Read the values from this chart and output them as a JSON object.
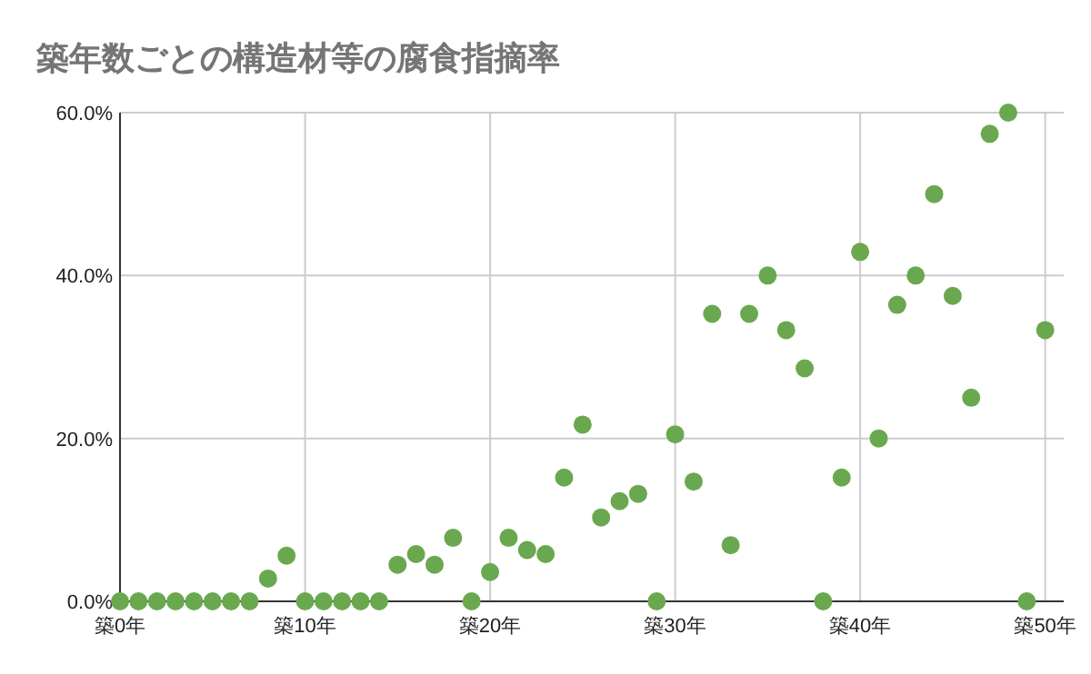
{
  "chart_data": {
    "type": "scatter",
    "title": "築年数ごとの構造材等の腐食指摘率",
    "categories": [
      "築0年",
      null,
      null,
      null,
      null,
      null,
      null,
      null,
      null,
      null,
      "築10年",
      null,
      null,
      null,
      null,
      null,
      null,
      null,
      null,
      null,
      "築20年",
      null,
      null,
      null,
      null,
      null,
      null,
      null,
      null,
      null,
      "築30年",
      null,
      null,
      null,
      null,
      null,
      null,
      null,
      null,
      null,
      "築40年",
      null,
      null,
      null,
      null,
      null,
      null,
      null,
      null,
      null,
      "築50年"
    ],
    "series": [
      {
        "color": "#6aa84f",
        "values": [
          0,
          0,
          0,
          0,
          0,
          0,
          0,
          0,
          2.8,
          5.6,
          0,
          0,
          0,
          0,
          0,
          4.5,
          5.8,
          4.5,
          7.8,
          0,
          3.6,
          7.8,
          6.3,
          5.8,
          15.2,
          21.7,
          10.3,
          12.3,
          13.2,
          0,
          20.5,
          14.7,
          35.3,
          6.9,
          35.3,
          40,
          33.3,
          28.6,
          0,
          15.2,
          42.9,
          20,
          36.4,
          40,
          50,
          37.5,
          25,
          57.4,
          60,
          0,
          33.3
        ]
      }
    ],
    "ylim": [
      0,
      60
    ],
    "yticks": [
      {
        "value": 0,
        "label": "0.0%"
      },
      {
        "value": 20,
        "label": "20.0%"
      },
      {
        "value": 40,
        "label": "40.0%"
      },
      {
        "value": 60,
        "label": "60.0%"
      }
    ],
    "grid": true,
    "marker": "circle"
  }
}
